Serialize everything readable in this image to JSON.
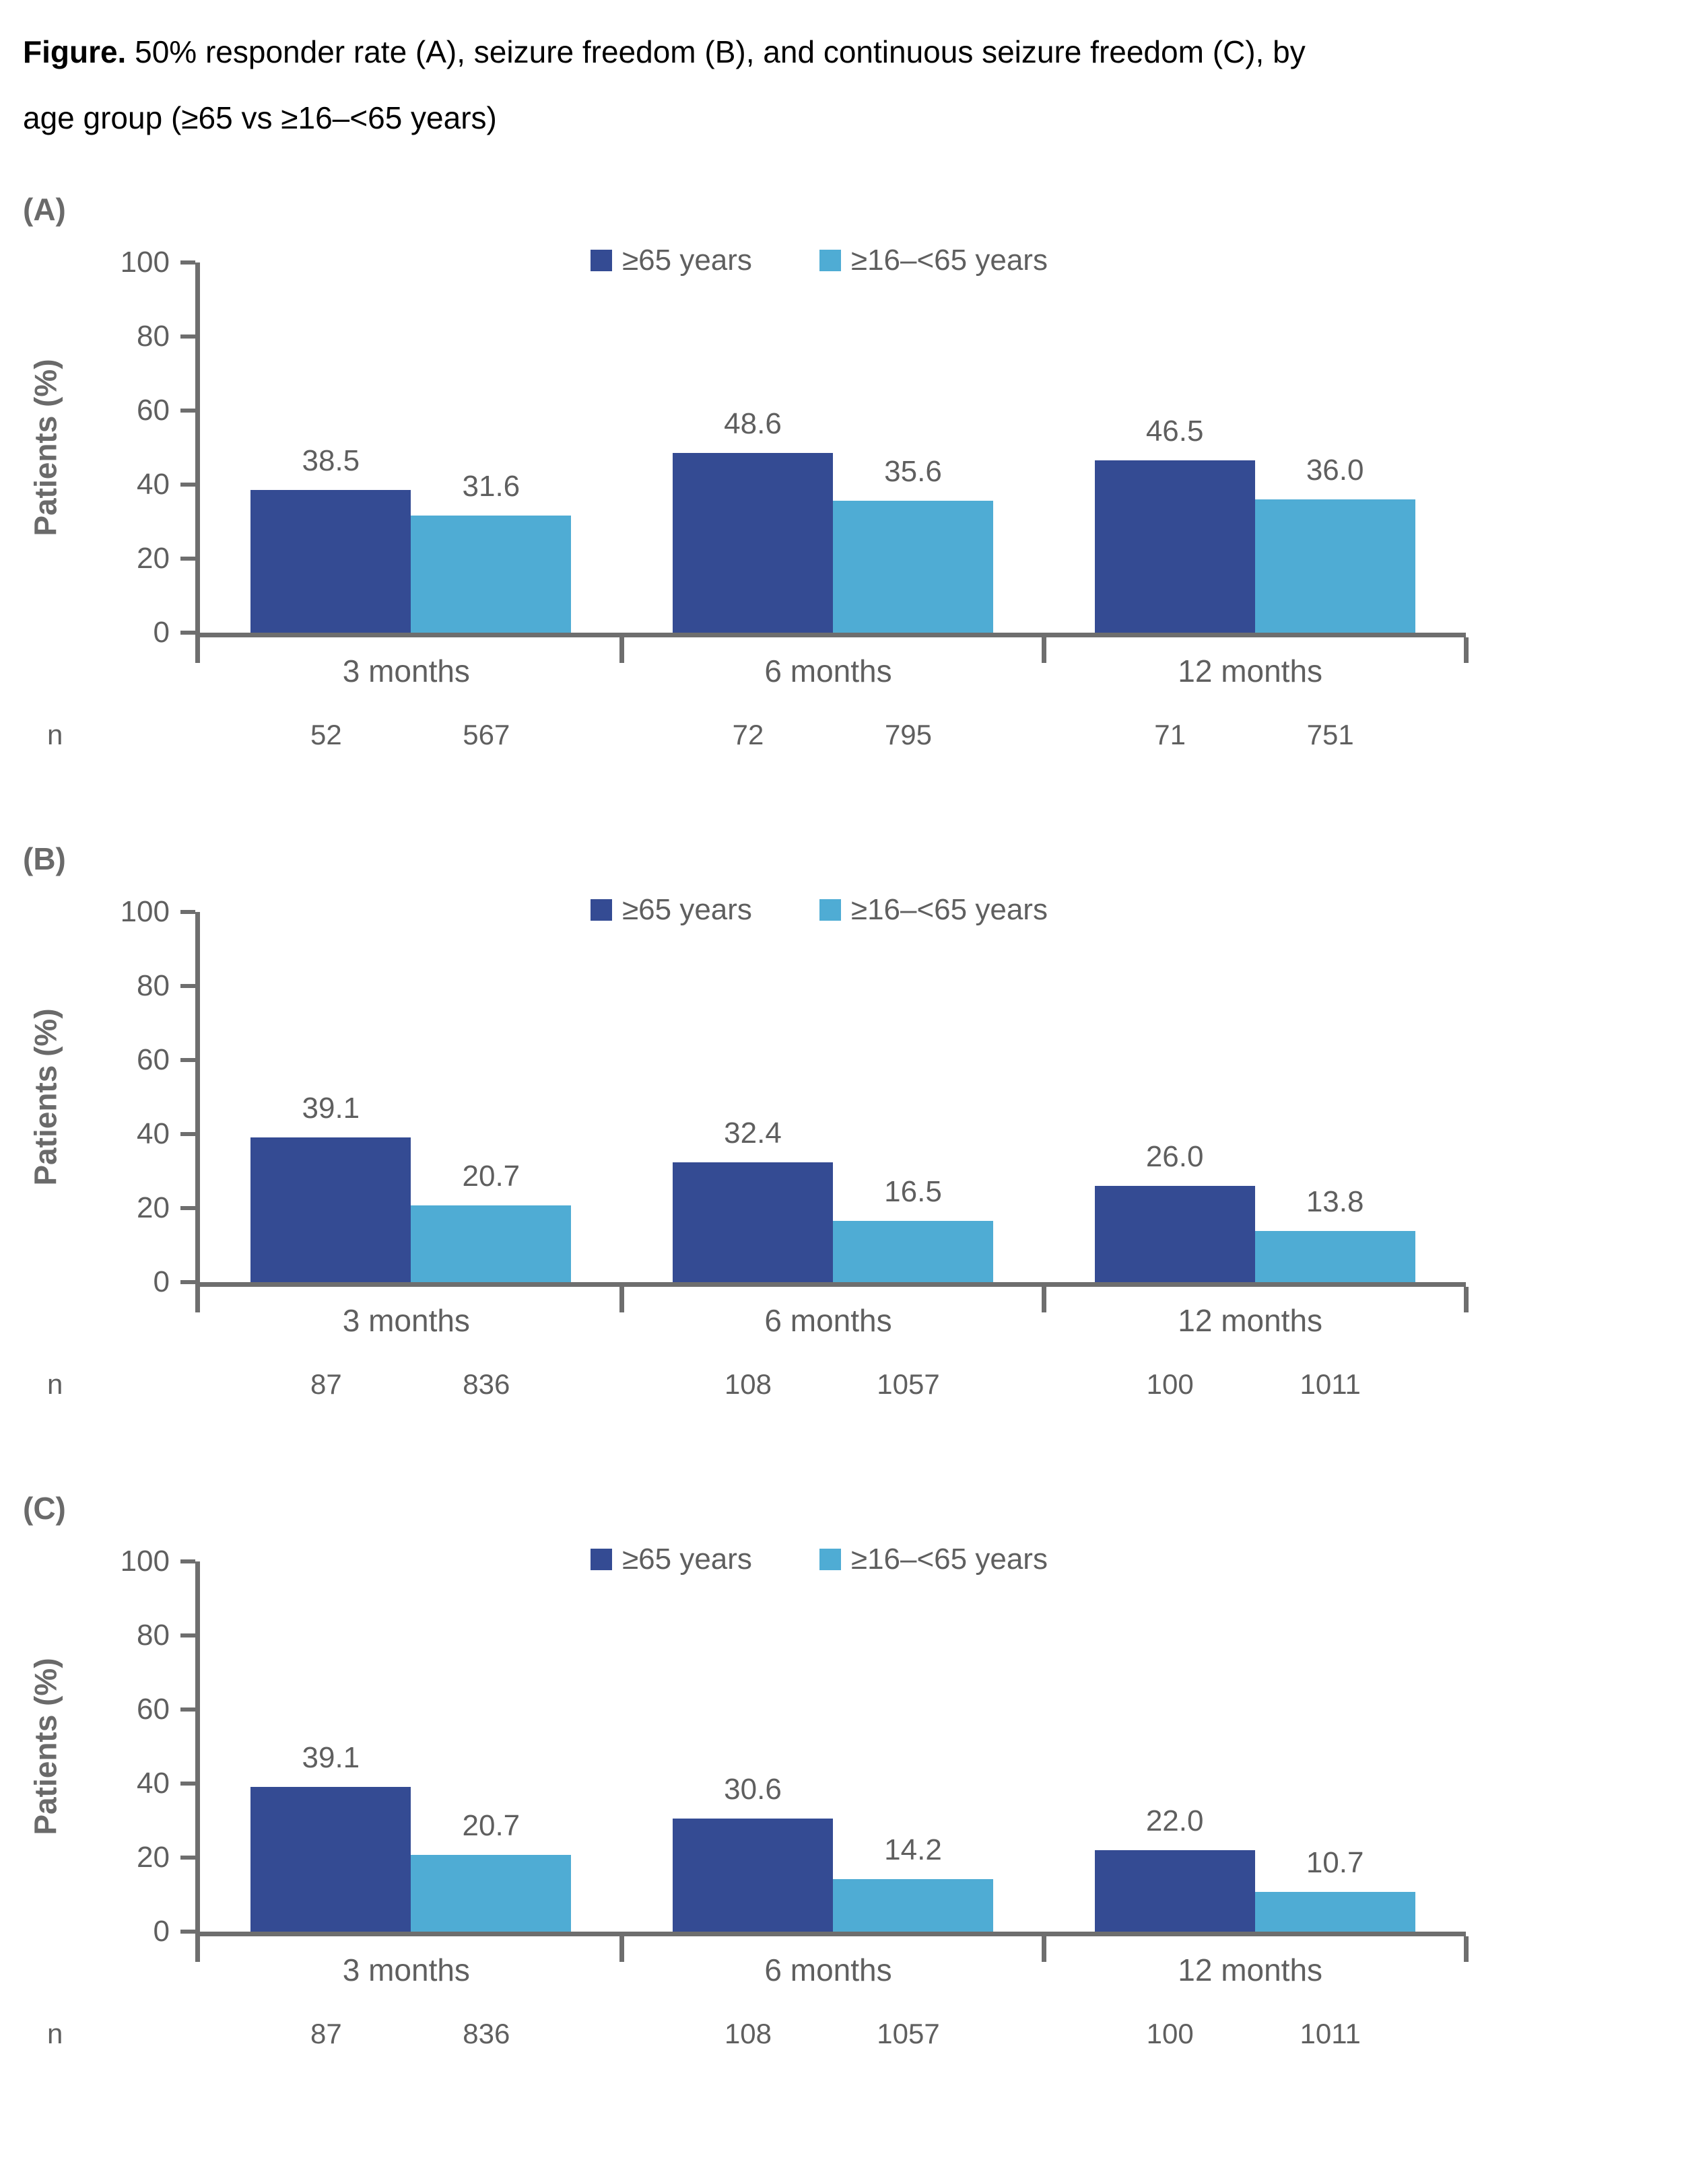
{
  "title": {
    "bold": "Figure.",
    "line1_rest": " 50% responder rate (A), seizure freedom (B), and continuous seizure freedom (C), by",
    "line2": "age group (≥65 vs ≥16–<65 years)"
  },
  "colors": {
    "bar_dark_blue": "#344B93",
    "bar_light_blue": "#4FACD4",
    "text_gray": "#5f5f5f",
    "axis_gray": "#6e6e6e",
    "title_black": "#000000"
  },
  "chart_data": [
    {
      "panel": "(A)",
      "type": "bar",
      "ylabel": "Patients (%)",
      "n_label": "n",
      "ylim": [
        0,
        100
      ],
      "yticks": [
        0,
        20,
        40,
        60,
        80,
        100
      ],
      "legend_position": "top",
      "categories": [
        "3 months",
        "6 months",
        "12 months"
      ],
      "series": [
        {
          "name": "≥65 years",
          "color": "#344B93",
          "values": [
            38.5,
            48.6,
            46.5
          ],
          "labels": [
            "38.5",
            "48.6",
            "46.5"
          ],
          "n": [
            52,
            72,
            71
          ]
        },
        {
          "name": "≥16–<65 years",
          "color": "#4FACD4",
          "values": [
            31.6,
            35.6,
            36.0
          ],
          "labels": [
            "31.6",
            "35.6",
            "36.0"
          ],
          "n": [
            567,
            795,
            751
          ]
        }
      ]
    },
    {
      "panel": "(B)",
      "type": "bar",
      "ylabel": "Patients (%)",
      "n_label": "n",
      "ylim": [
        0,
        100
      ],
      "yticks": [
        0,
        20,
        40,
        60,
        80,
        100
      ],
      "legend_position": "top",
      "categories": [
        "3 months",
        "6 months",
        "12 months"
      ],
      "series": [
        {
          "name": "≥65 years",
          "color": "#344B93",
          "values": [
            39.1,
            32.4,
            26.0
          ],
          "labels": [
            "39.1",
            "32.4",
            "26.0"
          ],
          "n": [
            87,
            108,
            100
          ]
        },
        {
          "name": "≥16–<65 years",
          "color": "#4FACD4",
          "values": [
            20.7,
            16.5,
            13.8
          ],
          "labels": [
            "20.7",
            "16.5",
            "13.8"
          ],
          "n": [
            836,
            1057,
            1011
          ]
        }
      ]
    },
    {
      "panel": "(C)",
      "type": "bar",
      "ylabel": "Patients (%)",
      "n_label": "n",
      "ylim": [
        0,
        100
      ],
      "yticks": [
        0,
        20,
        40,
        60,
        80,
        100
      ],
      "legend_position": "top",
      "categories": [
        "3 months",
        "6 months",
        "12 months"
      ],
      "series": [
        {
          "name": "≥65 years",
          "color": "#344B93",
          "values": [
            39.1,
            30.6,
            22.0
          ],
          "labels": [
            "39.1",
            "30.6",
            "22.0"
          ],
          "n": [
            87,
            108,
            100
          ]
        },
        {
          "name": "≥16–<65 years",
          "color": "#4FACD4",
          "values": [
            20.7,
            14.2,
            10.7
          ],
          "labels": [
            "20.7",
            "14.2",
            "10.7"
          ],
          "n": [
            836,
            1057,
            1011
          ]
        }
      ]
    }
  ]
}
